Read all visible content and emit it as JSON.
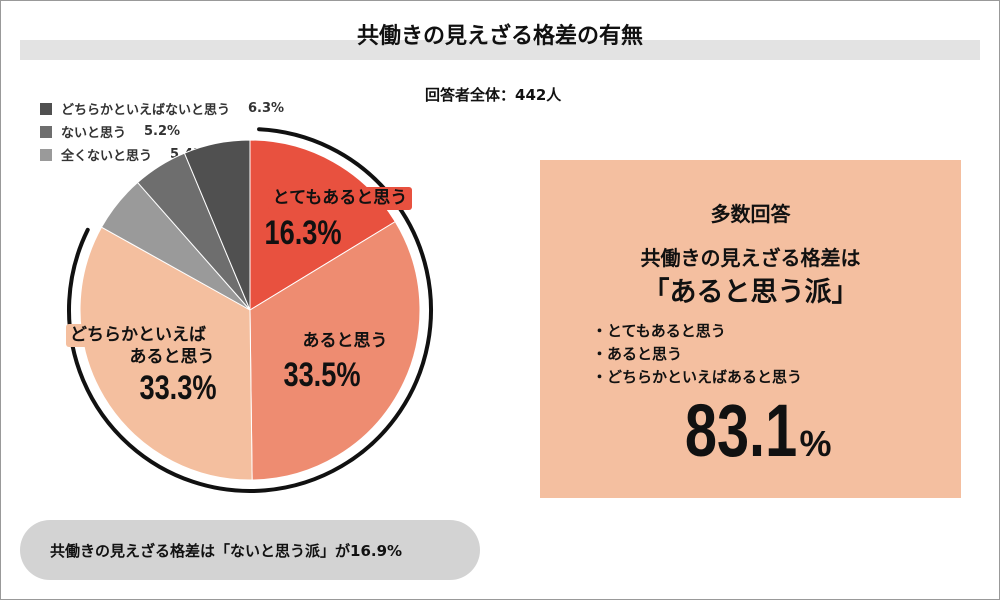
{
  "title": "共働きの見えざる格差の有無",
  "total_label": "回答者全体：442人",
  "legend": [
    {
      "label": "どちらかといえばないと思う",
      "value": "6.3%",
      "color": "#505050"
    },
    {
      "label": "ないと思う",
      "value": "5.2%",
      "color": "#6e6e6e"
    },
    {
      "label": "全くないと思う",
      "value": "5.4%",
      "color": "#9a9a9a"
    }
  ],
  "chart_data": {
    "type": "pie",
    "start_position": "top, clockwise",
    "slices": [
      {
        "label": "とてもあると思う",
        "value": 16.3,
        "value_label": "16.3%",
        "color": "#e8513f",
        "label_color": "#111111",
        "label_bg": "#e8513f"
      },
      {
        "label": "あると思う",
        "value": 33.5,
        "value_label": "33.5%",
        "color": "#ee8c71",
        "label_color": "#111111"
      },
      {
        "label_lines": [
          "どちらかといえば",
          "あると思う"
        ],
        "label": "どちらかといえばあると思う",
        "value": 33.3,
        "value_label": "33.3%",
        "color": "#f4bf9f",
        "label_color": "#111111",
        "label_bg": "#f4bf9f"
      },
      {
        "label": "全くないと思う",
        "value": 5.4,
        "color": "#9a9a9a"
      },
      {
        "label": "ないと思う",
        "value": 5.2,
        "color": "#6e6e6e"
      },
      {
        "label": "どちらかといえばないと思う",
        "value": 6.3,
        "color": "#505050"
      }
    ]
  },
  "callout": {
    "heading": "多数回答",
    "line1": "共働きの見えざる格差は",
    "line2": "「あると思う派」",
    "items": [
      "・とてもあると思う",
      "・あると思う",
      "・どちらかといえばあると思う"
    ],
    "percent": "83.1",
    "percent_unit": "%",
    "bg_color": "#f4bfa0"
  },
  "footer_note": "共働きの見えざる格差は「ないと思う派」が16.9%"
}
